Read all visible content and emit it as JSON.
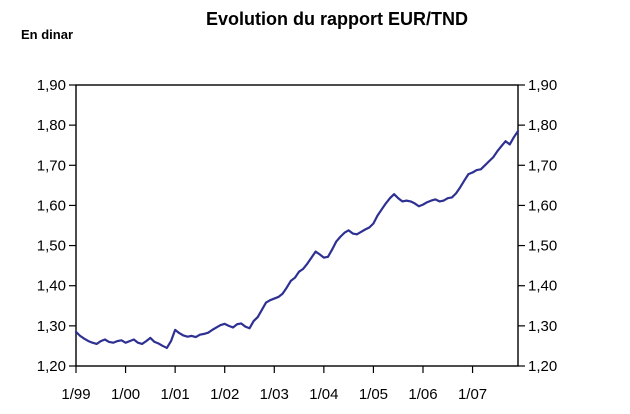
{
  "chart_data": {
    "type": "line",
    "title": "Evolution du rapport EUR/TND",
    "ylabel": "En dinar",
    "xlabel": "",
    "x_ticks": [
      "1/99",
      "1/00",
      "1/01",
      "1/02",
      "1/03",
      "1/04",
      "1/05",
      "1/06",
      "1/07"
    ],
    "y_ticks": [
      "1,20",
      "1,30",
      "1,40",
      "1,50",
      "1,60",
      "1,70",
      "1,80",
      "1,90"
    ],
    "ylim": [
      1.2,
      1.9
    ],
    "xlim": [
      "1999-01",
      "2007-12"
    ],
    "grid": true,
    "legend": "none",
    "line_color": "#2E3192",
    "series": [
      {
        "x": [
          "1999-01",
          "1999-02",
          "1999-03",
          "1999-04",
          "1999-05",
          "1999-06",
          "1999-07",
          "1999-08",
          "1999-09",
          "1999-10",
          "1999-11",
          "1999-12",
          "2000-01",
          "2000-02",
          "2000-03",
          "2000-04",
          "2000-05",
          "2000-06",
          "2000-07",
          "2000-08",
          "2000-09",
          "2000-10",
          "2000-11",
          "2000-12",
          "2001-01",
          "2001-02",
          "2001-03",
          "2001-04",
          "2001-05",
          "2001-06",
          "2001-07",
          "2001-08",
          "2001-09",
          "2001-10",
          "2001-11",
          "2001-12",
          "2002-01",
          "2002-02",
          "2002-03",
          "2002-04",
          "2002-05",
          "2002-06",
          "2002-07",
          "2002-08",
          "2002-09",
          "2002-10",
          "2002-11",
          "2002-12",
          "2003-01",
          "2003-02",
          "2003-03",
          "2003-04",
          "2003-05",
          "2003-06",
          "2003-07",
          "2003-08",
          "2003-09",
          "2003-10",
          "2003-11",
          "2003-12",
          "2004-01",
          "2004-02",
          "2004-03",
          "2004-04",
          "2004-05",
          "2004-06",
          "2004-07",
          "2004-08",
          "2004-09",
          "2004-10",
          "2004-11",
          "2004-12",
          "2005-01",
          "2005-02",
          "2005-03",
          "2005-04",
          "2005-05",
          "2005-06",
          "2005-07",
          "2005-08",
          "2005-09",
          "2005-10",
          "2005-11",
          "2005-12",
          "2006-01",
          "2006-02",
          "2006-03",
          "2006-04",
          "2006-05",
          "2006-06",
          "2006-07",
          "2006-08",
          "2006-09",
          "2006-10",
          "2006-11",
          "2006-12",
          "2007-01",
          "2007-02",
          "2007-03",
          "2007-04",
          "2007-05",
          "2007-06",
          "2007-07",
          "2007-08",
          "2007-09",
          "2007-10",
          "2007-11",
          "2007-12"
        ],
        "y": [
          1.285,
          1.275,
          1.268,
          1.262,
          1.258,
          1.255,
          1.262,
          1.266,
          1.26,
          1.258,
          1.262,
          1.264,
          1.258,
          1.262,
          1.266,
          1.258,
          1.255,
          1.262,
          1.27,
          1.26,
          1.256,
          1.25,
          1.245,
          1.262,
          1.29,
          1.282,
          1.276,
          1.273,
          1.275,
          1.272,
          1.278,
          1.28,
          1.283,
          1.29,
          1.296,
          1.302,
          1.305,
          1.3,
          1.296,
          1.304,
          1.306,
          1.298,
          1.294,
          1.312,
          1.322,
          1.34,
          1.358,
          1.364,
          1.368,
          1.372,
          1.38,
          1.395,
          1.412,
          1.42,
          1.435,
          1.442,
          1.455,
          1.47,
          1.485,
          1.478,
          1.47,
          1.472,
          1.49,
          1.51,
          1.522,
          1.532,
          1.538,
          1.53,
          1.528,
          1.534,
          1.54,
          1.545,
          1.555,
          1.575,
          1.59,
          1.605,
          1.618,
          1.628,
          1.618,
          1.61,
          1.612,
          1.61,
          1.605,
          1.598,
          1.602,
          1.608,
          1.612,
          1.615,
          1.61,
          1.612,
          1.618,
          1.62,
          1.63,
          1.645,
          1.662,
          1.678,
          1.682,
          1.688,
          1.69,
          1.7,
          1.71,
          1.72,
          1.735,
          1.748,
          1.76,
          1.752,
          1.77,
          1.785
        ]
      }
    ]
  }
}
